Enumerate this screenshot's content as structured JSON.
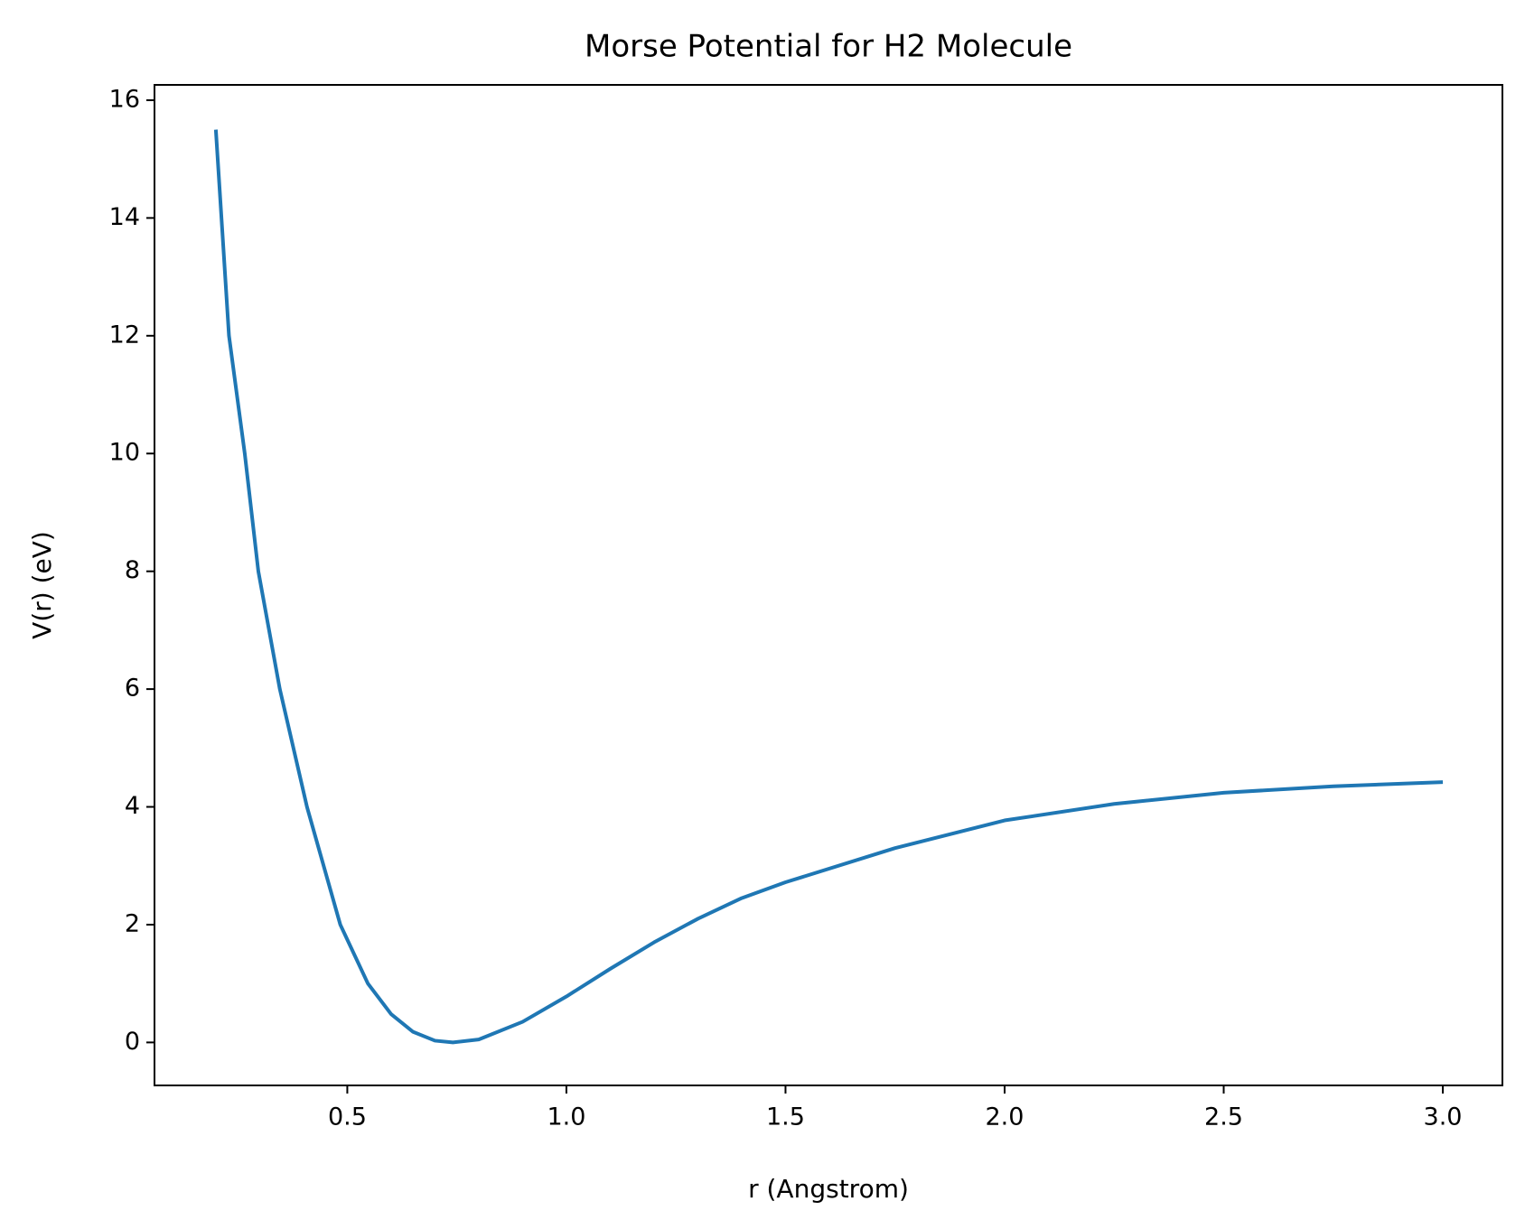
{
  "chart_data": {
    "type": "line",
    "title": "Morse Potential for H2 Molecule",
    "x_label": "r (Angstrom)",
    "y_label": "V(r) (eV)",
    "x": [
      0.2,
      0.23,
      0.266,
      0.297,
      0.346,
      0.408,
      0.484,
      0.547,
      0.6,
      0.65,
      0.7,
      0.741,
      0.8,
      0.9,
      1.0,
      1.1,
      1.2,
      1.3,
      1.4,
      1.5,
      1.75,
      2.0,
      2.25,
      2.5,
      2.75,
      3.0
    ],
    "series": [
      {
        "name": "V(r)",
        "color": "#1f77b4",
        "values": [
          15.5,
          12,
          10,
          8,
          6,
          4,
          2,
          1,
          0.48,
          0.18,
          0.03,
          0,
          0.05,
          0.35,
          0.78,
          1.25,
          1.7,
          2.1,
          2.45,
          2.72,
          3.3,
          3.77,
          4.05,
          4.24,
          4.35,
          4.42
        ]
      }
    ],
    "xlim": [
      0.06,
      3.136
    ],
    "ylim": [
      -0.73,
      16.26
    ],
    "xticks": [
      {
        "value": 0.5,
        "label": "0.5"
      },
      {
        "value": 1,
        "label": "1.0"
      },
      {
        "value": 1.5,
        "label": "1.5"
      },
      {
        "value": 2,
        "label": "2.0"
      },
      {
        "value": 2.5,
        "label": "2.5"
      },
      {
        "value": 3,
        "label": "3.0"
      }
    ],
    "yticks": [
      0,
      2,
      4,
      6,
      8,
      10,
      12,
      14,
      16
    ],
    "grid": false
  }
}
